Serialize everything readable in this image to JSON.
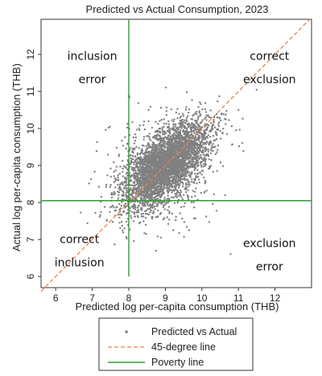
{
  "chart_data": {
    "type": "scatter",
    "title": "Predicted vs Actual Consumption, 2023",
    "xlabel": "Predicted log per-capita consumption (THB)",
    "ylabel": "Actual log per-capita consumption (THB)",
    "xlim": [
      5.6,
      13.0
    ],
    "ylim": [
      5.7,
      12.95
    ],
    "xticks": [
      6,
      7,
      8,
      9,
      10,
      11,
      12
    ],
    "yticks": [
      6,
      7,
      8,
      9,
      10,
      11,
      12
    ],
    "grid": false,
    "legend_position": "bottom",
    "series": [
      {
        "name": "Predicted vs Actual",
        "kind": "scatter",
        "color": "#808080",
        "center_x": 9.0,
        "center_y": 9.0,
        "spread_along": 0.75,
        "spread_across": 0.35,
        "x_range": [
          6.2,
          11.8
        ],
        "y_range": [
          6.1,
          12.9
        ]
      },
      {
        "name": "45-degree line",
        "kind": "line",
        "style": "dashed",
        "color": "#e8834d",
        "points": [
          [
            5.6,
            5.6
          ],
          [
            12.95,
            12.95
          ]
        ]
      },
      {
        "name": "Poverty line",
        "kind": "reference",
        "color": "#2ea02e",
        "x": 8.0,
        "y": 8.05
      }
    ],
    "annotations": [
      {
        "lines": [
          "inclusion",
          "error"
        ],
        "x": 7.0,
        "y": 11.85
      },
      {
        "lines": [
          "correct",
          "exclusion"
        ],
        "x": 11.85,
        "y": 11.85
      },
      {
        "lines": [
          "correct",
          "inclusion"
        ],
        "x": 6.65,
        "y": 6.9
      },
      {
        "lines": [
          "exclusion",
          "error"
        ],
        "x": 11.85,
        "y": 6.8
      }
    ]
  }
}
